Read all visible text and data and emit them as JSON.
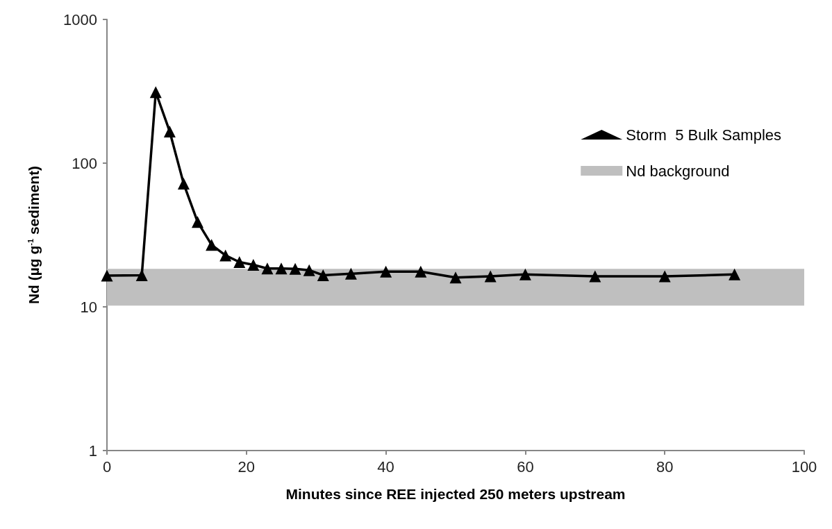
{
  "chart_data": {
    "type": "line",
    "xlabel": "Minutes since REE injected 250 meters upstream",
    "ylabel": "Nd (µg g$^{-1}$ sediment)",
    "x": [
      0,
      5,
      7,
      9,
      11,
      13,
      15,
      17,
      19,
      21,
      23,
      25,
      27,
      29,
      31,
      35,
      40,
      45,
      50,
      55,
      60,
      70,
      80,
      90
    ],
    "series": [
      {
        "name": "Storm  5 Bulk Samples",
        "color": "#000000",
        "values": [
          16.5,
          16.6,
          312,
          166,
          72,
          39,
          27,
          22.8,
          20.5,
          19.6,
          18.5,
          18.5,
          18.4,
          18,
          16.6,
          17,
          17.6,
          17.6,
          16,
          16.3,
          16.8,
          16.3,
          16.3,
          16.8
        ]
      }
    ],
    "bands": [
      {
        "axis": "y",
        "from": 10.2,
        "to": 18.4,
        "label": "Nd background",
        "color": "#bfbfbf"
      }
    ],
    "xlim": [
      0,
      100
    ],
    "xticks": [
      0,
      20,
      40,
      60,
      80,
      100
    ],
    "ylim": [
      1,
      1000
    ],
    "yticks": [
      1,
      10,
      100,
      1000
    ],
    "log": "y",
    "grid": false,
    "legend": "top right",
    "marker": "triangle",
    "line_style": "solid"
  }
}
